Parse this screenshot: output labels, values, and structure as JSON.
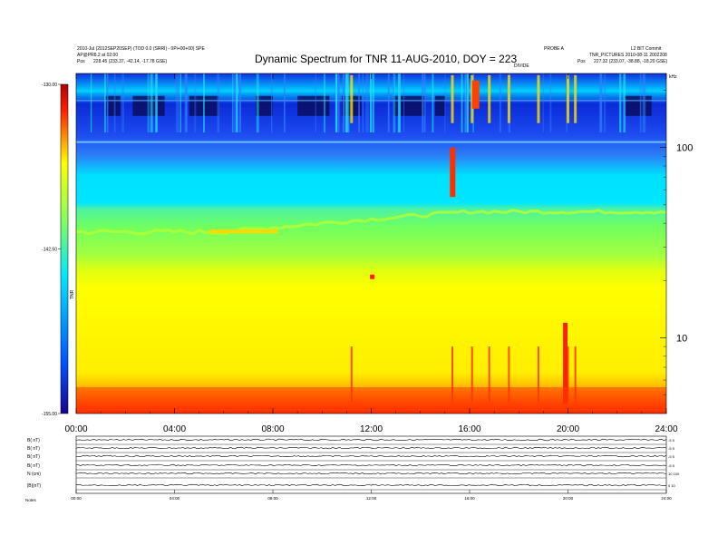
{
  "header": {
    "line1": "2010-Jul (2012SEP20SEP) (TOD 0.0 (SRRI) - 0Pi+00+00) SPE",
    "line2": "AP@PR8.2 at 02:00",
    "pos_left_label": "Pos",
    "pos_left_values": "228.45 (233.37, -42.14, -17.78 GSE)",
    "right_top_a": "PROBE A",
    "right_top_b": "L2 BIT Commit",
    "right_line2": "TNR_PICTURES 2010-08-11 2002208",
    "pos_right_label": "Pos",
    "pos_right_values": "227.32 (233.07, -38.88, -18.20 GSE)",
    "center_small": "DIVIDE",
    "khz_label": "kHz"
  },
  "chart_data": {
    "type": "heatmap",
    "title": "Dynamic Spectrum for TNR 11-AUG-2010, DOY = 223",
    "x_tick_labels": [
      "00:00",
      "04:00",
      "08:00",
      "12:00",
      "16:00",
      "20:00",
      "24:00"
    ],
    "x_tick_hours": [
      0,
      4,
      8,
      12,
      16,
      20,
      24
    ],
    "x_range_hours": [
      0,
      24
    ],
    "y_scale": "log",
    "y_units": "kHz",
    "y_tick_labels": [
      "100",
      "10"
    ],
    "y_tick_values": [
      100,
      10
    ],
    "y_range": [
      4,
      245
    ],
    "colorbar": {
      "label": "TNR",
      "tick_labels": [
        "-130.00",
        "-142.50",
        "-155.00"
      ],
      "tick_values": [
        -130,
        -142.5,
        -155
      ],
      "range": [
        -155,
        -130
      ],
      "colors": [
        "#1a0090",
        "#0050ff",
        "#00e8ff",
        "#7cff60",
        "#ffff00",
        "#ff2000",
        "#b00000"
      ]
    },
    "features": {
      "red_floor_kHz": [
        4,
        5.5
      ],
      "yellow_band_top_kHz": 19,
      "green_band_top_kHz": 40,
      "cyan_band_top_kHz": 120,
      "bursts_hours": [
        11.2,
        15.3,
        16.1,
        16.8,
        17.6,
        18.8,
        20.0,
        20.3
      ]
    }
  },
  "lower_panel": {
    "row_labels": [
      "B( nT)",
      "B( nT)",
      "B( nT)",
      "B( nT)",
      "N (cm)",
      "|B|(nT)"
    ],
    "right_labels": [
      "-5  5",
      "-5  5",
      "-5  5",
      "-5  5",
      "10  100",
      "0  10"
    ],
    "x_tick_labels": [
      "00:00",
      "04:00",
      "08:00",
      "12:00",
      "16:00",
      "20:00",
      "24:00"
    ],
    "footer_label": "Notes"
  }
}
